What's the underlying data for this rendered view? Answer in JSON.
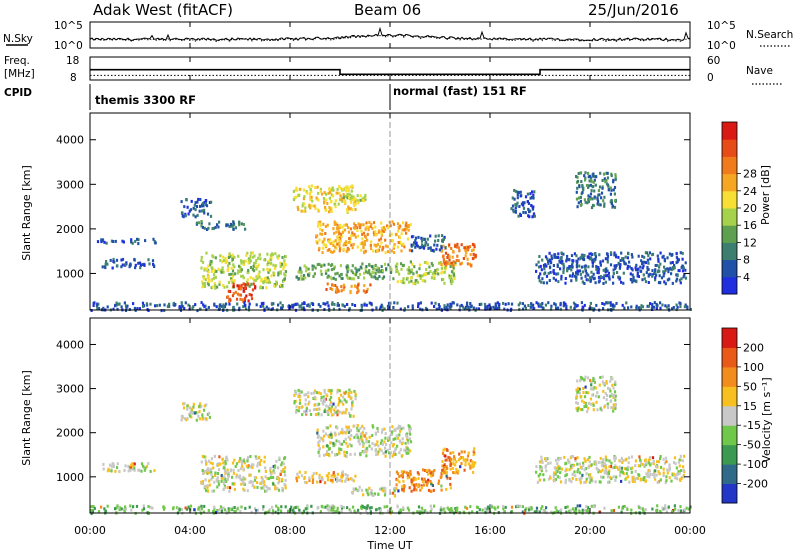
{
  "header": {
    "radar": "Adak West (fitACF)",
    "beam": "Beam 06",
    "date": "25/Jun/2016"
  },
  "nsky_panel": {
    "left_label": "N.Sky",
    "right_label": "N.Search",
    "left_ticks": [
      "10^5",
      "10^0"
    ],
    "right_ticks": [
      "10^5",
      "10^0"
    ]
  },
  "freq_panel": {
    "left_label_1": "Freq.",
    "left_label_2": "[MHz]",
    "right_label": "Nave",
    "left_ticks": [
      "18",
      "8"
    ],
    "right_ticks": [
      "60",
      "0"
    ]
  },
  "cpid_panel": {
    "label": "CPID",
    "modes": [
      {
        "text": "themis 3300 RF"
      },
      {
        "text": "normal (fast) 151 RF"
      }
    ]
  },
  "x_axis": {
    "label": "Time UT",
    "ticks": [
      "00:00",
      "04:00",
      "08:00",
      "12:00",
      "16:00",
      "20:00",
      "00:00"
    ]
  },
  "power_panel": {
    "ylabel": "Slant Range [km]",
    "yticks": [
      "1000",
      "2000",
      "3000",
      "4000"
    ],
    "colorbar": {
      "label": "Power [dB]",
      "ticks": [
        "4",
        "8",
        "12",
        "16",
        "20",
        "24",
        "28"
      ],
      "colors": [
        "#1f2fe0",
        "#2050a8",
        "#3c7f70",
        "#5fa050",
        "#a6d14a",
        "#f7df35",
        "#f5a623",
        "#f07b1c",
        "#e84c16",
        "#d91a14"
      ]
    }
  },
  "velocity_panel": {
    "ylabel": "Slant Range [km]",
    "yticks": [
      "1000",
      "2000",
      "3000",
      "4000"
    ],
    "colorbar": {
      "label": "Velocity [m s⁻¹]",
      "ticks": [
        "200",
        "100",
        "50",
        "15",
        "-15",
        "-50",
        "-100",
        "-200"
      ],
      "colors": [
        "#2236c8",
        "#2f6a88",
        "#3c9a50",
        "#70c84a",
        "#c8c8c8",
        "#f7c020",
        "#f28c1c",
        "#e95a18",
        "#d91a14"
      ]
    }
  },
  "chart_data": [
    {
      "type": "line",
      "title": "N.Sky / N.Search",
      "x_range": [
        "00:00",
        "24:00"
      ],
      "y_scale": "log",
      "ylim": [
        1,
        100000
      ],
      "series": [
        {
          "name": "N.Sky"
        },
        {
          "name": "N.Search"
        }
      ]
    },
    {
      "type": "line",
      "title": "Freq. / Nave",
      "x_range": [
        "00:00",
        "24:00"
      ],
      "series": [
        {
          "name": "Freq. [MHz]",
          "x": [
            "00:00",
            "10:00",
            "10:00",
            "18:00",
            "18:00",
            "24:00"
          ],
          "values": [
            12.5,
            12.5,
            10.5,
            10.5,
            12.5,
            12.5
          ]
        },
        {
          "name": "Nave",
          "x": [
            "00:00",
            "24:00"
          ],
          "values": [
            12,
            12
          ]
        }
      ]
    },
    {
      "type": "heatmap",
      "name": "power",
      "x_range_hours": [
        0,
        24
      ],
      "ylim_km": [
        180,
        4600
      ],
      "regions": [
        {
          "t": [
            0.4,
            2.6
          ],
          "r": [
            1150,
            1350
          ],
          "lvl": 1
        },
        {
          "t": [
            0.2,
            2.8
          ],
          "r": [
            1700,
            1800
          ],
          "lvl": 1
        },
        {
          "t": [
            3.6,
            4.8
          ],
          "r": [
            2300,
            2700
          ],
          "lvl": 1
        },
        {
          "t": [
            4.2,
            6.2
          ],
          "r": [
            2000,
            2200
          ],
          "lvl": 2
        },
        {
          "t": [
            4.4,
            7.8
          ],
          "r": [
            700,
            1500
          ],
          "lvl": 4
        },
        {
          "t": [
            5.4,
            6.6
          ],
          "r": [
            400,
            800
          ],
          "lvl": 8
        },
        {
          "t": [
            8.1,
            10.6
          ],
          "r": [
            2400,
            3000
          ],
          "lvl": 5
        },
        {
          "t": [
            9.0,
            12.8
          ],
          "r": [
            1500,
            2200
          ],
          "lvl": 6
        },
        {
          "t": [
            8.2,
            12.2
          ],
          "r": [
            900,
            1250
          ],
          "lvl": 3
        },
        {
          "t": [
            9.4,
            11.2
          ],
          "r": [
            600,
            800
          ],
          "lvl": 7
        },
        {
          "t": [
            10.0,
            11.0
          ],
          "r": [
            2600,
            2800
          ],
          "lvl": 4
        },
        {
          "t": [
            12.2,
            14.6
          ],
          "r": [
            800,
            1300
          ],
          "lvl": 4
        },
        {
          "t": [
            14.0,
            15.4
          ],
          "r": [
            1200,
            1700
          ],
          "lvl": 7
        },
        {
          "t": [
            12.8,
            14.2
          ],
          "r": [
            1500,
            1900
          ],
          "lvl": 1
        },
        {
          "t": [
            17.8,
            23.8
          ],
          "r": [
            800,
            1500
          ],
          "lvl": 1
        },
        {
          "t": [
            19.4,
            21.0
          ],
          "r": [
            2500,
            3300
          ],
          "lvl": 2
        },
        {
          "t": [
            16.8,
            17.8
          ],
          "r": [
            2300,
            2900
          ],
          "lvl": 1
        },
        {
          "t": [
            0.0,
            24.0
          ],
          "r": [
            200,
            380
          ],
          "lvl": 1
        }
      ]
    },
    {
      "type": "heatmap",
      "name": "velocity",
      "x_range_hours": [
        0,
        24
      ],
      "ylim_km": [
        180,
        4600
      ],
      "regions": [
        {
          "t": [
            0.4,
            2.6
          ],
          "r": [
            1150,
            1350
          ],
          "lvl": 4
        },
        {
          "t": [
            3.6,
            4.8
          ],
          "r": [
            2300,
            2700
          ],
          "lvl": 4
        },
        {
          "t": [
            4.4,
            7.8
          ],
          "r": [
            700,
            1500
          ],
          "lvl": 4
        },
        {
          "t": [
            8.1,
            10.6
          ],
          "r": [
            2400,
            3000
          ],
          "lvl": 4
        },
        {
          "t": [
            9.0,
            12.8
          ],
          "r": [
            1500,
            2200
          ],
          "lvl": 4
        },
        {
          "t": [
            8.2,
            10.6
          ],
          "r": [
            900,
            1150
          ],
          "lvl": 5
        },
        {
          "t": [
            10.4,
            12.2
          ],
          "r": [
            600,
            800
          ],
          "lvl": 4
        },
        {
          "t": [
            12.2,
            14.4
          ],
          "r": [
            700,
            1200
          ],
          "lvl": 6
        },
        {
          "t": [
            14.0,
            15.4
          ],
          "r": [
            1100,
            1700
          ],
          "lvl": 6
        },
        {
          "t": [
            17.8,
            23.8
          ],
          "r": [
            900,
            1500
          ],
          "lvl": 4
        },
        {
          "t": [
            19.4,
            21.0
          ],
          "r": [
            2500,
            3300
          ],
          "lvl": 4
        },
        {
          "t": [
            0.0,
            24.0
          ],
          "r": [
            200,
            380
          ],
          "lvl": 3
        }
      ]
    }
  ]
}
